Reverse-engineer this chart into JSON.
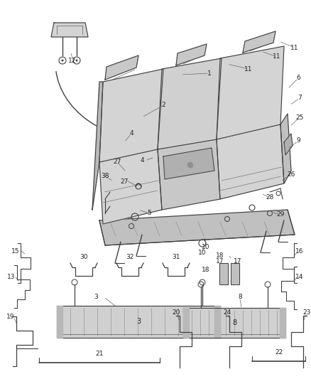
{
  "bg_color": "#ffffff",
  "line_color": "#404040",
  "label_color": "#222222",
  "fill_seat": "#d4d4d4",
  "fill_dark": "#b8b8b8",
  "fill_light": "#e8e8e8",
  "fill_track": "#c8c8c8",
  "figsize": [
    4.38,
    5.33
  ],
  "dpi": 100,
  "font_size": 6.5
}
